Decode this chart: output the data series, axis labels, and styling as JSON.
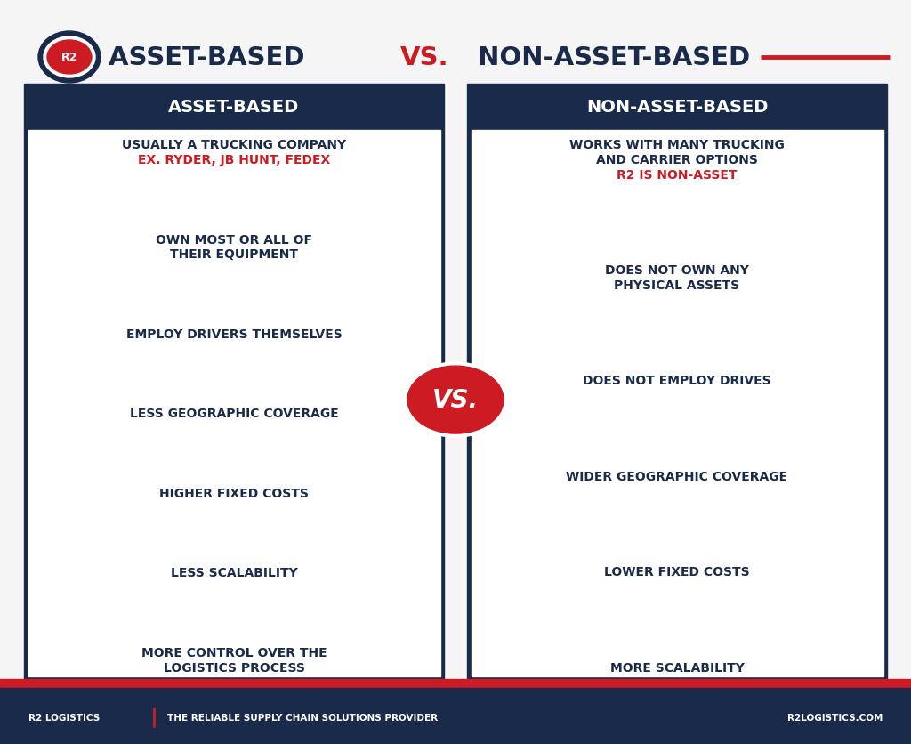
{
  "bg_color": "#f5f5f5",
  "navy": "#1a2a4a",
  "red": "#cc1b22",
  "white": "#ffffff",
  "left_header": "ASSET-BASED",
  "right_header": "NON-ASSET-BASED",
  "vs_text": "VS.",
  "left_items": [
    {
      "lines": [
        "USUALLY A TRUCKING COMPANY",
        "EX. RYDER, JB HUNT, FEDEX"
      ],
      "colors": [
        "#1a2a4a",
        "#cc1b22"
      ]
    },
    {
      "lines": [
        "OWN MOST OR ALL OF",
        "THEIR EQUIPMENT"
      ],
      "colors": [
        "#1a2a4a",
        "#1a2a4a"
      ]
    },
    {
      "lines": [
        "EMPLOY DRIVERS THEMSELVES"
      ],
      "colors": [
        "#1a2a4a"
      ]
    },
    {
      "lines": [
        "LESS GEOGRAPHIC COVERAGE"
      ],
      "colors": [
        "#1a2a4a"
      ]
    },
    {
      "lines": [
        "HIGHER FIXED COSTS"
      ],
      "colors": [
        "#1a2a4a"
      ]
    },
    {
      "lines": [
        "LESS SCALABILITY"
      ],
      "colors": [
        "#1a2a4a"
      ]
    },
    {
      "lines": [
        "MORE CONTROL OVER THE",
        "LOGISTICS PROCESS"
      ],
      "colors": [
        "#1a2a4a",
        "#1a2a4a"
      ]
    }
  ],
  "right_items": [
    {
      "lines": [
        "WORKS WITH MANY TRUCKING",
        "AND CARRIER OPTIONS",
        "R2 IS NON-ASSET"
      ],
      "colors": [
        "#1a2a4a",
        "#1a2a4a",
        "#cc1b22"
      ]
    },
    {
      "lines": [
        "DOES NOT OWN ANY",
        "PHYSICAL ASSETS"
      ],
      "colors": [
        "#1a2a4a",
        "#1a2a4a"
      ]
    },
    {
      "lines": [
        "DOES NOT EMPLOY DRIVES"
      ],
      "colors": [
        "#1a2a4a"
      ]
    },
    {
      "lines": [
        "WIDER GEOGRAPHIC COVERAGE"
      ],
      "colors": [
        "#1a2a4a"
      ]
    },
    {
      "lines": [
        "LOWER FIXED COSTS"
      ],
      "colors": [
        "#1a2a4a"
      ]
    },
    {
      "lines": [
        "MORE SCALABILITY"
      ],
      "colors": [
        "#1a2a4a"
      ]
    }
  ],
  "footer_left": "R2 LOGISTICS",
  "footer_mid": "THE RELIABLE SUPPLY CHAIN SOLUTIONS PROVIDER",
  "footer_right": "R2LOGISTICS.COM"
}
